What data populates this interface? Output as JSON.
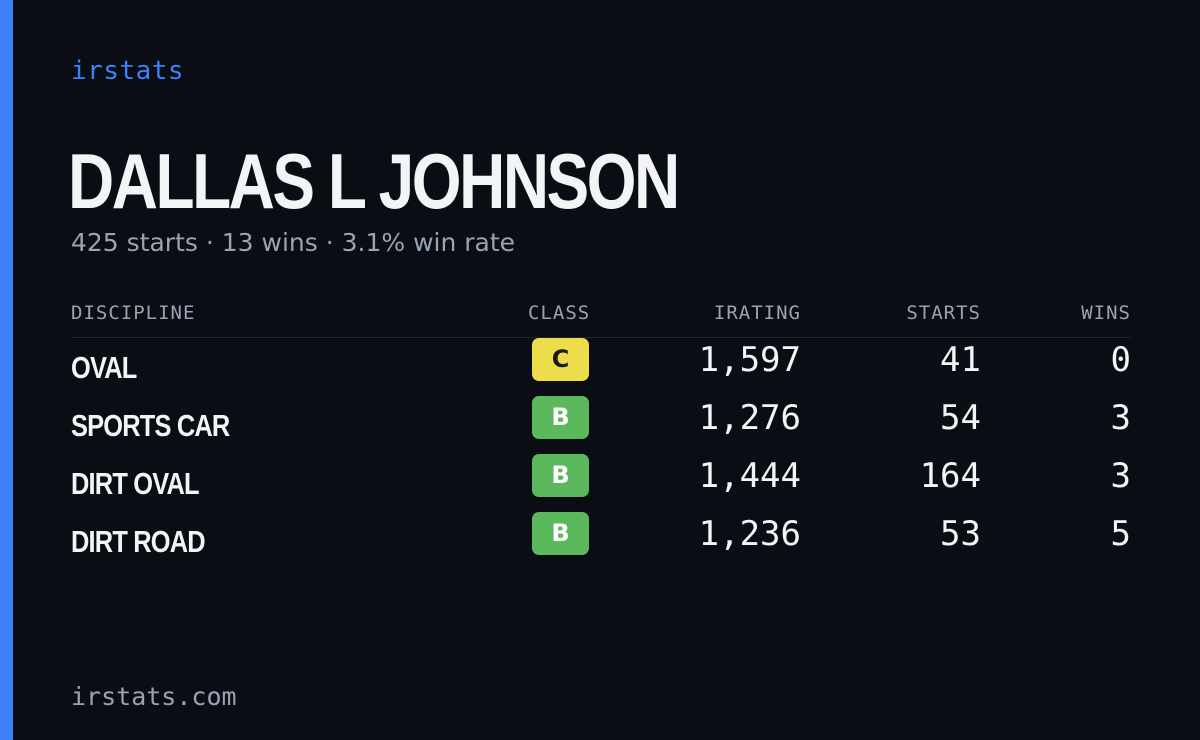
{
  "brand": "irstats",
  "driver": {
    "name": "DALLAS L JOHNSON",
    "summary": "425 starts · 13 wins · 3.1% win rate"
  },
  "table": {
    "headers": {
      "discipline": "DISCIPLINE",
      "class": "CLASS",
      "irating": "IRATING",
      "starts": "STARTS",
      "wins": "WINS"
    },
    "rows": [
      {
        "discipline": "OVAL",
        "class": "C",
        "class_bg": "#eedd4a",
        "class_fg": "#1a1a1a",
        "irating": "1,597",
        "starts": "41",
        "wins": "0"
      },
      {
        "discipline": "SPORTS CAR",
        "class": "B",
        "class_bg": "#5cb85c",
        "class_fg": "#ffffff",
        "irating": "1,276",
        "starts": "54",
        "wins": "3"
      },
      {
        "discipline": "DIRT OVAL",
        "class": "B",
        "class_bg": "#5cb85c",
        "class_fg": "#ffffff",
        "irating": "1,444",
        "starts": "164",
        "wins": "3"
      },
      {
        "discipline": "DIRT ROAD",
        "class": "B",
        "class_bg": "#5cb85c",
        "class_fg": "#ffffff",
        "irating": "1,236",
        "starts": "53",
        "wins": "5"
      }
    ]
  },
  "footer": {
    "url": "irstats.com"
  },
  "colors": {
    "background": "#0a0d14",
    "accent": "#3b82f6",
    "muted_text": "#9aa3b2",
    "text": "#f3f4f6"
  }
}
